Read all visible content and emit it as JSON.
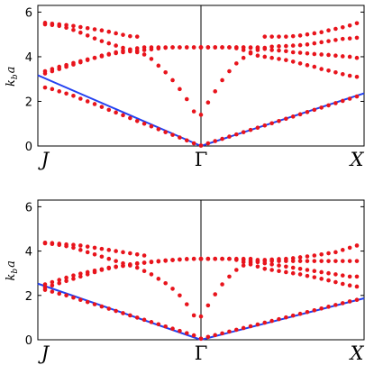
{
  "chart_data": [
    {
      "type": "scatter",
      "title": "",
      "ylabel": "k_b a",
      "ylabel_main": "k",
      "ylabel_sub": "b",
      "ylabel_tail": "a",
      "ylim": [
        0,
        6.3
      ],
      "yticks": [
        "0",
        "2",
        "4",
        "6"
      ],
      "ytick_values": [
        0,
        2,
        4,
        6
      ],
      "xsymbols": [
        {
          "label": "J",
          "style": "italic"
        },
        {
          "label": "Γ",
          "style": "upright"
        },
        {
          "label": "X",
          "style": "italic"
        }
      ],
      "grid": false,
      "colors": {
        "points": "#e8141c",
        "line": "#2341f0",
        "frame": "#000000"
      },
      "light_line": {
        "left": {
          "start": 3.17,
          "end": 0
        },
        "right": {
          "start": 0,
          "end": 2.36
        }
      },
      "series": [
        {
          "segment": "J-Gamma",
          "values": [
            2.62,
            2.55,
            2.45,
            2.35,
            2.25,
            2.12,
            2.0,
            1.88,
            1.75,
            1.62,
            1.5,
            1.38,
            1.25,
            1.12,
            1.0,
            0.88,
            0.75,
            0.62,
            0.5,
            0.38,
            0.25,
            0.12,
            0.02
          ]
        },
        {
          "segment": "J-Gamma",
          "values": [
            3.25,
            3.35,
            3.45,
            3.55,
            3.65,
            3.75,
            3.85,
            3.95,
            4.05,
            4.12,
            4.2,
            4.27,
            4.33,
            4.38,
            4.42,
            4.42,
            4.42,
            4.42,
            4.42,
            4.42,
            4.42,
            4.42,
            4.42
          ]
        },
        {
          "segment": "J-Gamma",
          "values": [
            3.35,
            3.45,
            3.55,
            3.63,
            3.72,
            3.8,
            3.88,
            3.95,
            4.02,
            4.1,
            4.16,
            4.2,
            4.24,
            4.27,
            4.3,
            4.33,
            4.37,
            4.4,
            4.42,
            4.42,
            4.42,
            4.42,
            4.42
          ]
        },
        {
          "segment": "J-Gamma",
          "values": [
            5.52,
            5.48,
            5.45,
            5.42,
            5.38,
            5.33,
            5.28,
            5.23,
            5.18,
            5.12,
            5.05,
            4.98,
            4.92,
            4.9
          ]
        },
        {
          "segment": "J-Gamma",
          "values": [
            5.45,
            5.42,
            5.38,
            5.3,
            5.2,
            5.08,
            4.95,
            4.82,
            4.7,
            4.6,
            4.5,
            4.4,
            4.3,
            4.2,
            4.1,
            3.9,
            3.6,
            3.3,
            2.95,
            2.55,
            2.1,
            1.55
          ]
        },
        {
          "segment": "Gamma-X",
          "values": [
            0.02,
            0.12,
            0.22,
            0.32,
            0.42,
            0.52,
            0.62,
            0.72,
            0.82,
            0.92,
            1.02,
            1.12,
            1.22,
            1.32,
            1.42,
            1.52,
            1.62,
            1.72,
            1.82,
            1.92,
            2.02,
            2.12,
            2.22
          ]
        },
        {
          "segment": "Gamma-X",
          "values": [
            1.4,
            1.95,
            2.45,
            2.95,
            3.35,
            3.7,
            3.95,
            4.15,
            4.3,
            4.4,
            4.45,
            4.47,
            4.48,
            4.5,
            4.52,
            4.55,
            4.6,
            4.65,
            4.7,
            4.75,
            4.8,
            4.82,
            4.85
          ]
        },
        {
          "segment": "Gamma-X",
          "values": [
            4.42,
            4.42,
            4.42,
            4.42,
            4.42,
            4.38,
            4.3,
            4.2,
            4.05,
            4.0,
            3.95,
            3.9,
            3.85,
            3.78,
            3.7,
            3.62,
            3.55,
            3.45,
            3.38,
            3.3,
            3.22,
            3.15,
            3.1
          ]
        },
        {
          "segment": "Gamma-X",
          "values": [
            4.42,
            4.42,
            4.42,
            4.42,
            4.42,
            4.42,
            4.42,
            4.4,
            4.38,
            4.35,
            4.3,
            4.28,
            4.25,
            4.2,
            4.18,
            4.15,
            4.12,
            4.1,
            4.08,
            4.05,
            4.02,
            4.0,
            3.95
          ]
        },
        {
          "segment": "Gamma-X",
          "values": [
            4.42,
            4.42,
            4.42,
            4.42,
            4.42,
            4.42,
            4.42,
            4.42,
            4.42,
            4.9,
            4.9,
            4.9,
            4.9,
            4.92,
            4.95,
            5.0,
            5.05,
            5.1,
            5.18,
            5.25,
            5.32,
            5.4,
            5.5
          ]
        }
      ]
    },
    {
      "type": "scatter",
      "title": "",
      "ylabel": "k_b a",
      "ylabel_main": "k",
      "ylabel_sub": "b",
      "ylabel_tail": "a",
      "ylim": [
        0,
        6.3
      ],
      "yticks": [
        "0",
        "2",
        "4",
        "6"
      ],
      "ytick_values": [
        0,
        2,
        4,
        6
      ],
      "xsymbols": [
        {
          "label": "J",
          "style": "italic"
        },
        {
          "label": "Γ",
          "style": "upright"
        },
        {
          "label": "X",
          "style": "italic"
        }
      ],
      "grid": false,
      "colors": {
        "points": "#e8141c",
        "line": "#2341f0",
        "frame": "#000000"
      },
      "light_line": {
        "left": {
          "start": 2.53,
          "end": 0
        },
        "right": {
          "start": 0,
          "end": 1.87
        }
      },
      "series": [
        {
          "segment": "J-Gamma",
          "values": [
            2.25,
            2.17,
            2.08,
            2.0,
            1.9,
            1.8,
            1.7,
            1.6,
            1.5,
            1.4,
            1.3,
            1.2,
            1.1,
            1.0,
            0.9,
            0.8,
            0.7,
            0.6,
            0.5,
            0.4,
            0.3,
            0.2,
            0.05
          ]
        },
        {
          "segment": "J-Gamma",
          "values": [
            2.35,
            2.45,
            2.55,
            2.65,
            2.75,
            2.85,
            2.95,
            3.05,
            3.15,
            3.22,
            3.28,
            3.33,
            3.38,
            3.43,
            3.47,
            3.5,
            3.53,
            3.56,
            3.59,
            3.62,
            3.64,
            3.65,
            3.65
          ]
        },
        {
          "segment": "J-Gamma",
          "values": [
            2.5,
            2.6,
            2.7,
            2.8,
            2.9,
            2.98,
            3.05,
            3.12,
            3.18,
            3.25,
            3.3,
            3.35,
            3.4,
            3.45,
            3.48,
            3.52,
            3.55,
            3.58,
            3.6,
            3.62,
            3.64,
            3.65,
            3.65
          ]
        },
        {
          "segment": "J-Gamma",
          "values": [
            4.38,
            4.36,
            4.33,
            4.3,
            4.28,
            4.25,
            4.2,
            4.15,
            4.1,
            4.05,
            4.0,
            3.95,
            3.9,
            3.85,
            3.8
          ]
        },
        {
          "segment": "J-Gamma",
          "values": [
            4.35,
            4.32,
            4.28,
            4.22,
            4.15,
            4.05,
            3.95,
            3.85,
            3.75,
            3.65,
            3.55,
            3.45,
            3.35,
            3.25,
            3.1,
            2.95,
            2.75,
            2.55,
            2.3,
            2.0,
            1.6,
            1.1
          ]
        },
        {
          "segment": "Gamma-X",
          "values": [
            0.05,
            0.13,
            0.21,
            0.29,
            0.37,
            0.45,
            0.53,
            0.61,
            0.69,
            0.77,
            0.85,
            0.93,
            1.01,
            1.09,
            1.17,
            1.25,
            1.33,
            1.41,
            1.49,
            1.57,
            1.65,
            1.73,
            1.8
          ]
        },
        {
          "segment": "Gamma-X",
          "values": [
            1.05,
            1.55,
            2.05,
            2.5,
            2.85,
            3.15,
            3.35,
            3.48,
            3.55,
            3.6,
            3.62,
            3.64,
            3.65,
            3.68,
            3.72,
            3.76,
            3.8,
            3.85,
            3.9,
            3.95,
            4.05,
            4.15,
            4.25
          ]
        },
        {
          "segment": "Gamma-X",
          "values": [
            3.65,
            3.65,
            3.65,
            3.65,
            3.65,
            3.6,
            3.5,
            3.4,
            3.3,
            3.2,
            3.15,
            3.1,
            3.05,
            3.0,
            2.95,
            2.88,
            2.82,
            2.75,
            2.68,
            2.6,
            2.52,
            2.45,
            2.4
          ]
        },
        {
          "segment": "Gamma-X",
          "values": [
            3.65,
            3.65,
            3.65,
            3.65,
            3.65,
            3.63,
            3.6,
            3.55,
            3.5,
            3.45,
            3.4,
            3.35,
            3.3,
            3.25,
            3.2,
            3.15,
            3.1,
            3.05,
            3.0,
            2.95,
            2.9,
            2.85,
            2.85
          ]
        },
        {
          "segment": "Gamma-X",
          "values": [
            3.65,
            3.65,
            3.65,
            3.65,
            3.65,
            3.65,
            3.65,
            3.65,
            3.6,
            3.55,
            3.55,
            3.55,
            3.55,
            3.55,
            3.55,
            3.55,
            3.55,
            3.55,
            3.55,
            3.55,
            3.55,
            3.55,
            3.55
          ]
        }
      ]
    }
  ]
}
